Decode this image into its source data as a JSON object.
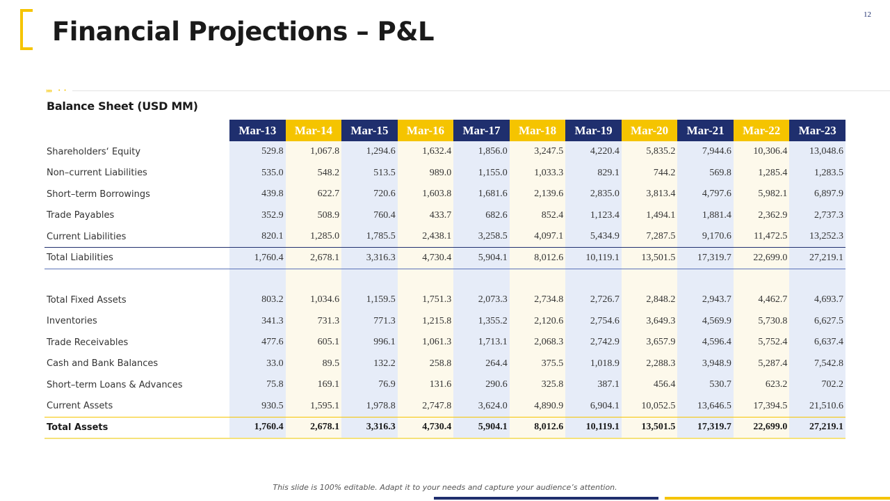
{
  "slide": {
    "title": "Financial Projections – P&L",
    "page_number": "12",
    "footer_note": "This slide is 100% editable. Adapt it to your needs and capture your audience’s attention.",
    "accent_chevrons": "»»",
    "accent_dots": "• •",
    "colors": {
      "navy": "#1f2f6e",
      "gold": "#f5c400",
      "navy_tint": "#e6ecf8",
      "gold_tint": "#fdf9eb"
    }
  },
  "table": {
    "title": "Balance Sheet (USD MM)",
    "columns": [
      "Mar-13",
      "Mar-14",
      "Mar-15",
      "Mar-16",
      "Mar-17",
      "Mar-18",
      "Mar-19",
      "Mar-20",
      "Mar-21",
      "Mar-22",
      "Mar-23"
    ],
    "liabilities": [
      {
        "label": "Shareholders‘ Equity",
        "values": [
          "529.8",
          "1,067.8",
          "1,294.6",
          "1,632.4",
          "1,856.0",
          "3,247.5",
          "4,220.4",
          "5,835.2",
          "7,944.6",
          "10,306.4",
          "13,048.6"
        ]
      },
      {
        "label": "Non–current Liabilities",
        "values": [
          "535.0",
          "548.2",
          "513.5",
          "989.0",
          "1,155.0",
          "1,033.3",
          "829.1",
          "744.2",
          "569.8",
          "1,285.4",
          "1,283.5"
        ]
      },
      {
        "label": "Short–term Borrowings",
        "values": [
          "439.8",
          "622.7",
          "720.6",
          "1,603.8",
          "1,681.6",
          "2,139.6",
          "2,835.0",
          "3,813.4",
          "4,797.6",
          "5,982.1",
          "6,897.9"
        ]
      },
      {
        "label": "Trade Payables",
        "values": [
          "352.9",
          "508.9",
          "760.4",
          "433.7",
          "682.6",
          "852.4",
          "1,123.4",
          "1,494.1",
          "1,881.4",
          "2,362.9",
          "2,737.3"
        ]
      },
      {
        "label": "Current Liabilities",
        "values": [
          "820.1",
          "1,285.0",
          "1,785.5",
          "2,438.1",
          "3,258.5",
          "4,097.1",
          "5,434.9",
          "7,287.5",
          "9,170.6",
          "11,472.5",
          "13,252.3"
        ]
      }
    ],
    "total_liabilities": {
      "label": "Total Liabilities",
      "values": [
        "1,760.4",
        "2,678.1",
        "3,316.3",
        "4,730.4",
        "5,904.1",
        "8,012.6",
        "10,119.1",
        "13,501.5",
        "17,319.7",
        "22,699.0",
        "27,219.1"
      ]
    },
    "assets": [
      {
        "label": "Total Fixed Assets",
        "values": [
          "803.2",
          "1,034.6",
          "1,159.5",
          "1,751.3",
          "2,073.3",
          "2,734.8",
          "2,726.7",
          "2,848.2",
          "2,943.7",
          "4,462.7",
          "4,693.7"
        ]
      },
      {
        "label": "Inventories",
        "values": [
          "341.3",
          "731.3",
          "771.3",
          "1,215.8",
          "1,355.2",
          "2,120.6",
          "2,754.6",
          "3,649.3",
          "4,569.9",
          "5,730.8",
          "6,627.5"
        ]
      },
      {
        "label": "Trade Receivables",
        "values": [
          "477.6",
          "605.1",
          "996.1",
          "1,061.3",
          "1,713.1",
          "2,068.3",
          "2,742.9",
          "3,657.9",
          "4,596.4",
          "5,752.4",
          "6,637.4"
        ]
      },
      {
        "label": "Cash and Bank Balances",
        "values": [
          "33.0",
          "89.5",
          "132.2",
          "258.8",
          "264.4",
          "375.5",
          "1,018.9",
          "2,288.3",
          "3,948.9",
          "5,287.4",
          "7,542.8"
        ]
      },
      {
        "label": "Short–term Loans & Advances",
        "values": [
          "75.8",
          "169.1",
          "76.9",
          "131.6",
          "290.6",
          "325.8",
          "387.1",
          "456.4",
          "530.7",
          "623.2",
          "702.2"
        ]
      },
      {
        "label": "Current Assets",
        "values": [
          "930.5",
          "1,595.1",
          "1,978.8",
          "2,747.8",
          "3,624.0",
          "4,890.9",
          "6,904.1",
          "10,052.5",
          "13,646.5",
          "17,394.5",
          "21,510.6"
        ]
      }
    ],
    "total_assets": {
      "label": "Total Assets",
      "values": [
        "1,760.4",
        "2,678.1",
        "3,316.3",
        "4,730.4",
        "5,904.1",
        "8,012.6",
        "10,119.1",
        "13,501.5",
        "17,319.7",
        "22,699.0",
        "27,219.1"
      ]
    }
  }
}
